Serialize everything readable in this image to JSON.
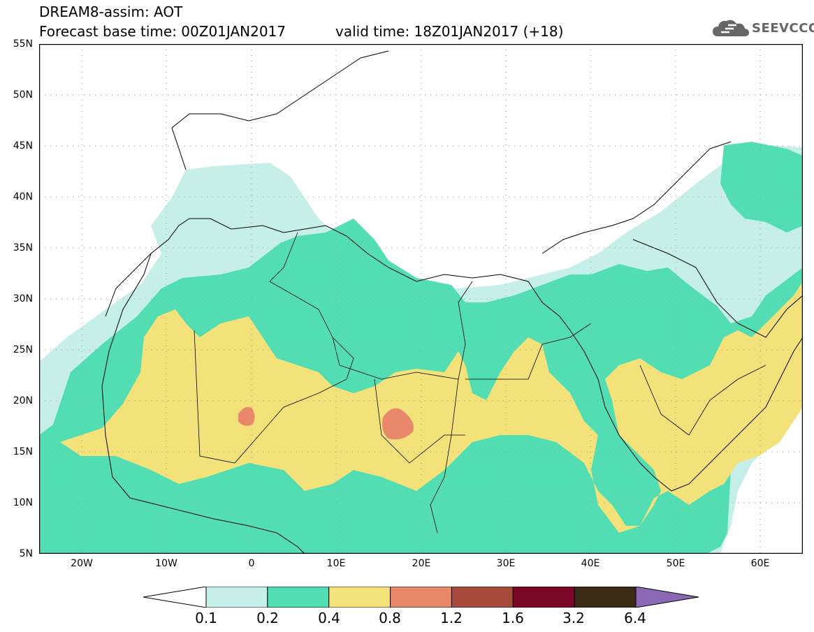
{
  "header": {
    "title_line1": "DREAM8-assim: AOT",
    "title_line2": "Forecast base time: 00Z01JAN2017",
    "valid_time": "valid time: 18Z01JAN2017 (+18)"
  },
  "logo": {
    "text": "SEEVCCC",
    "icon": "cloud-icon"
  },
  "axes": {
    "lat_labels": [
      "55N",
      "50N",
      "45N",
      "40N",
      "35N",
      "30N",
      "25N",
      "20N",
      "15N",
      "10N",
      "5N"
    ],
    "lon_labels": [
      "20W",
      "10W",
      "0",
      "10E",
      "20E",
      "30E",
      "40E",
      "50E",
      "60E"
    ],
    "lon_range": [
      -25,
      65
    ],
    "lat_range": [
      5,
      55
    ],
    "grid": "dotted"
  },
  "colorbar": {
    "labels": [
      "0.1",
      "0.2",
      "0.4",
      "0.8",
      "1.2",
      "1.6",
      "3.2",
      "6.4"
    ],
    "colors": [
      "#ffffff",
      "#c6efe9",
      "#53ddb3",
      "#f3e27a",
      "#e8876a",
      "#a64a3c",
      "#7a0628",
      "#3a2a16",
      "#8a68b4"
    ]
  },
  "colors": {
    "level_0.1": "#c6efe9",
    "level_0.2": "#53ddb3",
    "level_0.4": "#f3e27a",
    "level_0.8": "#e8876a"
  }
}
